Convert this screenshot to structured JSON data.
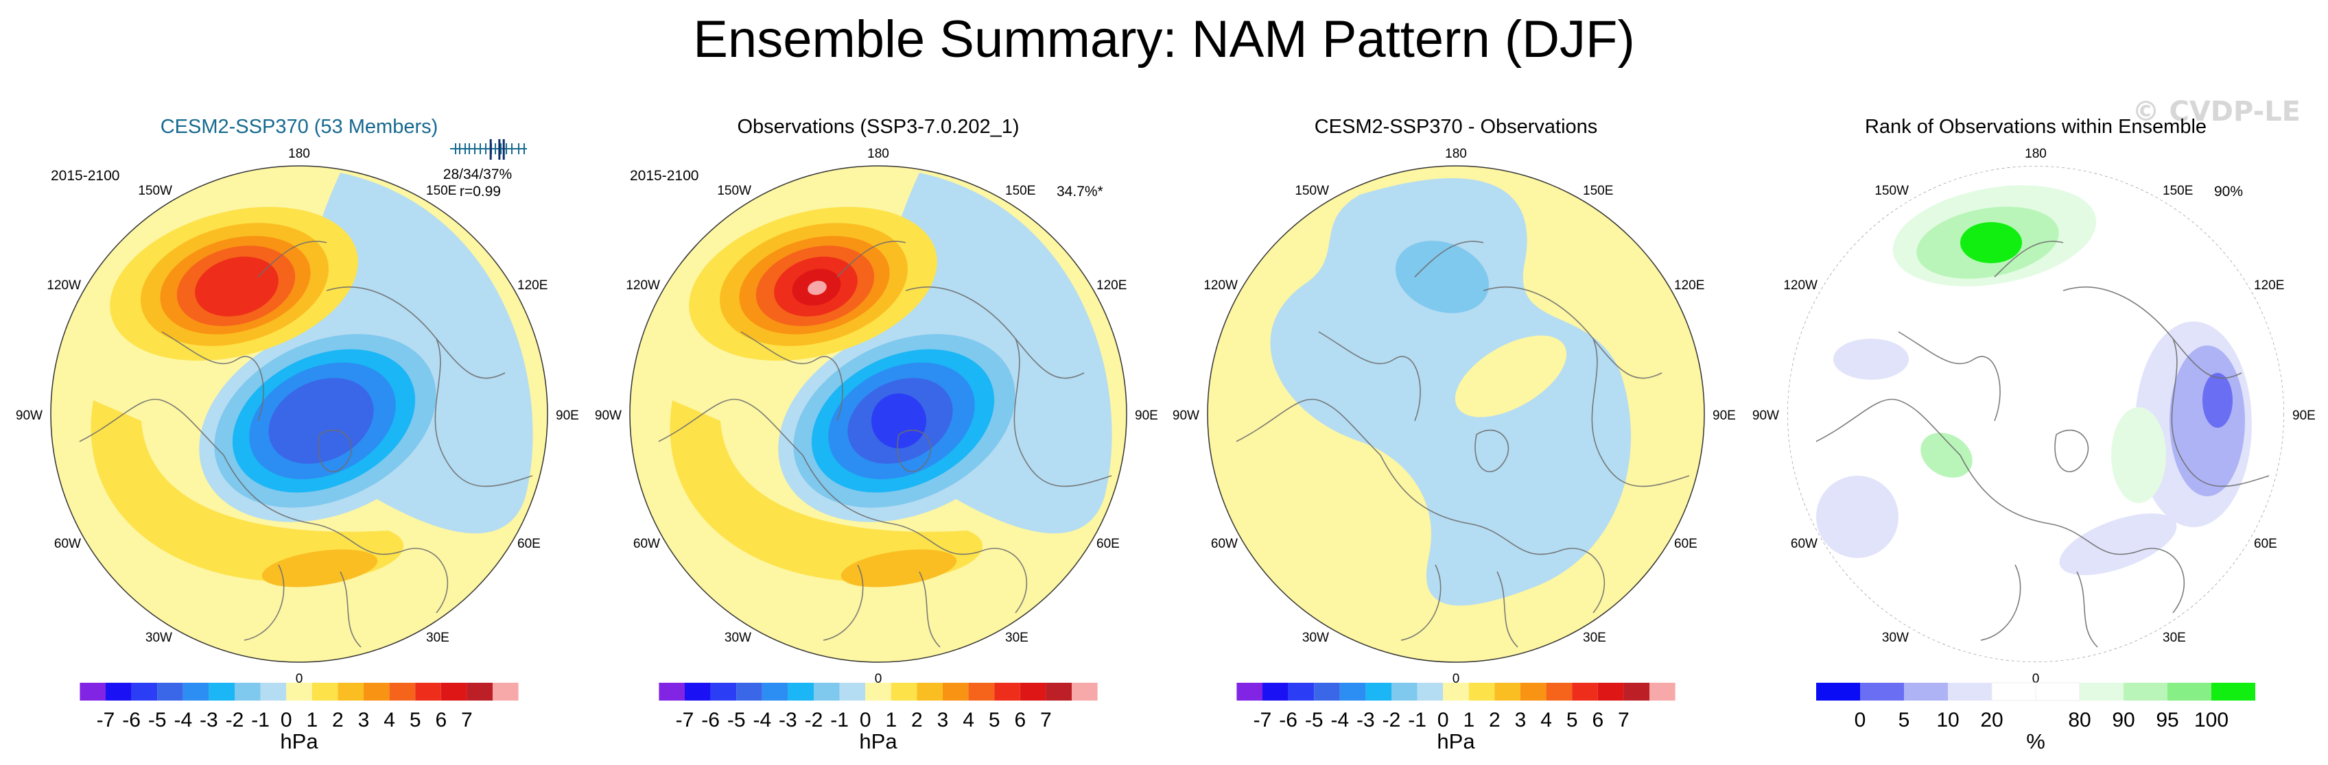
{
  "title": "Ensemble Summary: NAM Pattern (DJF)",
  "watermark": "© CVDP-LE",
  "colors": {
    "title_blue": "#16698f",
    "hpa_scale": [
      "#8124e3",
      "#1b11f5",
      "#2b3ef5",
      "#3a66e8",
      "#2c8df2",
      "#1ab6f5",
      "#7fc8ee",
      "#b4dcf2",
      "#fdf6a3",
      "#fde24a",
      "#fbbe22",
      "#f99314",
      "#f6641c",
      "#ee2d1a",
      "#df1616",
      "#bd1f27",
      "#f7a8a8"
    ],
    "rank_scale": [
      "#0a0cf5",
      "#6a6ef2",
      "#aeb3f5",
      "#e1e3fa",
      "#ffffff",
      "#ffffff",
      "#e3fbe3",
      "#b9f5b9",
      "#86ef86",
      "#11ef11"
    ],
    "rank_map_blue": "#9a9df5",
    "rank_map_green": "#a8f0a8",
    "coast": "#6e6e6e"
  },
  "map_labels": {
    "top": "180",
    "bottom": "0",
    "left": "90W",
    "right": "90E",
    "ul_outer": "150W",
    "ul_inner": "120W",
    "ur_outer": "150E",
    "ur_inner": "120E",
    "ll_outer": "60W",
    "ll_inner": "30W",
    "lr_outer": "60E",
    "lr_inner": "30E"
  },
  "panels": [
    {
      "title": "CESM2-SSP370 (53 Members)",
      "period": "2015-2100",
      "stats": "28/34/37%",
      "corr": "r=0.99",
      "pct": "",
      "colorbar_units": "hPa"
    },
    {
      "title": "Observations (SSP3-7.0.202_1)",
      "period": "2015-2100",
      "stats": "",
      "corr": "",
      "pct": "34.7%*",
      "colorbar_units": "hPa"
    },
    {
      "title": "CESM2-SSP370 - Observations",
      "period": "",
      "stats": "",
      "corr": "",
      "pct": "",
      "colorbar_units": "hPa"
    },
    {
      "title": "Rank of Observations within Ensemble",
      "period": "",
      "stats": "",
      "corr": "",
      "pct": "90%",
      "colorbar_units": "%"
    }
  ],
  "chart_data": [
    {
      "type": "heatmap",
      "title": "CESM2-SSP370 (53 Members)",
      "projection": "north-polar stereographic",
      "variable": "NAM pattern (DJF), 2015-2100",
      "units": "hPa",
      "color_levels": [
        "-7",
        "-6",
        "-5",
        "-4",
        "-3",
        "-2",
        "-1",
        "0",
        "1",
        "2",
        "3",
        "4",
        "5",
        "6",
        "7"
      ],
      "features": [
        {
          "name": "Arctic low",
          "min_value": -5,
          "location": "central Arctic"
        },
        {
          "name": "North Pacific high",
          "max_value": 5,
          "location": "Aleutian region"
        },
        {
          "name": "Atlantic / Mediterranean high band",
          "max_value": 2,
          "location": "mid-latitude Atlantic to Mediterranean"
        }
      ],
      "ensemble_rank_ticks": [
        28,
        34,
        37
      ],
      "pattern_correlation": 0.99
    },
    {
      "type": "heatmap",
      "title": "Observations (SSP3-7.0.202_1)",
      "projection": "north-polar stereographic",
      "variable": "NAM pattern (DJF), 2015-2100",
      "units": "hPa",
      "color_levels": [
        "-7",
        "-6",
        "-5",
        "-4",
        "-3",
        "-2",
        "-1",
        "0",
        "1",
        "2",
        "3",
        "4",
        "5",
        "6",
        "7"
      ],
      "features": [
        {
          "name": "Arctic low",
          "min_value": -5,
          "location": "central Arctic"
        },
        {
          "name": "North Pacific high",
          "max_value": 6,
          "location": "Aleutian region"
        },
        {
          "name": "Atlantic / Mediterranean high band",
          "max_value": 2,
          "location": "mid-latitude Atlantic to Mediterranean"
        }
      ],
      "percent_variance_explained": 34.7
    },
    {
      "type": "heatmap",
      "title": "CESM2-SSP370 - Observations",
      "projection": "north-polar stereographic",
      "units": "hPa",
      "color_levels": [
        "-7",
        "-6",
        "-5",
        "-4",
        "-3",
        "-2",
        "-1",
        "0",
        "1",
        "2",
        "3",
        "4",
        "5",
        "6",
        "7"
      ],
      "features": [
        {
          "name": "weak negative differences",
          "min_value": -1,
          "location": "Arctic and Pacific sector"
        },
        {
          "name": "weak positive differences",
          "max_value": 1,
          "location": "mid-latitudes"
        }
      ]
    },
    {
      "type": "heatmap",
      "title": "Rank of Observations within Ensemble",
      "projection": "north-polar stereographic",
      "units": "%",
      "color_levels": [
        "0",
        "5",
        "10",
        "20",
        "80",
        "90",
        "95",
        "100"
      ],
      "percent_area_within_ensemble": 90,
      "features": [
        {
          "name": "high rank (>=95%)",
          "location": "North Pacific"
        },
        {
          "name": "low rank (<=10%)",
          "location": "northern Eurasia / Atlantic"
        }
      ]
    }
  ]
}
